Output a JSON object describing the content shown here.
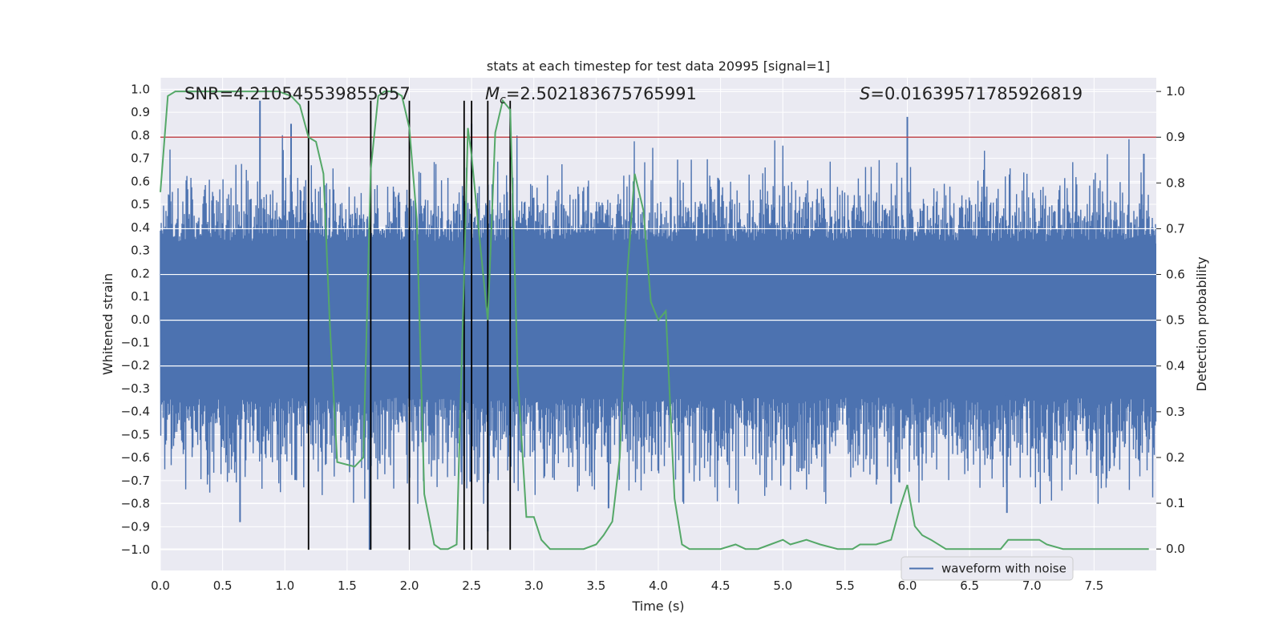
{
  "chart_data": {
    "type": "line",
    "title": "stats at each timestep for test data 20995 [signal=1]",
    "xlabel": "Time (s)",
    "ylabel_left": "Whitened strain",
    "ylabel_right": "Detection probability",
    "xlim": [
      0.0,
      8.0
    ],
    "ylim_left": [
      -1.09,
      1.05
    ],
    "ylim_right": [
      -0.047,
      1.03
    ],
    "x_ticks": [
      "0.0",
      "0.5",
      "1.0",
      "1.5",
      "2.0",
      "2.5",
      "3.0",
      "3.5",
      "4.0",
      "4.5",
      "5.0",
      "5.5",
      "6.0",
      "6.5",
      "7.0",
      "7.5"
    ],
    "y_ticks_left": [
      "1.0",
      "0.9",
      "0.8",
      "0.7",
      "0.6",
      "0.5",
      "0.4",
      "0.3",
      "0.2",
      "0.1",
      "0.0",
      "−0.1",
      "−0.2",
      "−0.3",
      "−0.4",
      "−0.5",
      "−0.6",
      "−0.7",
      "−0.8",
      "−0.9",
      "−1.0"
    ],
    "y_ticks_right": [
      "1.0",
      "0.9",
      "0.8",
      "0.7",
      "0.6",
      "0.5",
      "0.4",
      "0.3",
      "0.2",
      "0.1",
      "0.0"
    ],
    "annotations": {
      "snr": "SNR=4.210545539855957",
      "mc_symbol": "M",
      "mc_sub": "c",
      "mc_value": "=2.502183675765991",
      "s_symbol": "S",
      "s_value": "=0.01639571785926819"
    },
    "legend": {
      "position": "lower-right",
      "entries": [
        "waveform with noise"
      ]
    },
    "colors": {
      "background": "#eaeaf2",
      "grid": "#ffffff",
      "waveform": "#4c72b0",
      "probability": "#55a868",
      "threshold": "#c44e52",
      "markers": "#000000"
    },
    "threshold": 0.9,
    "detection_markers_x": [
      1.19,
      1.69,
      2.0,
      2.44,
      2.5,
      2.63,
      2.81
    ],
    "marker_ymin": -1.0,
    "marker_ymax": 0.95,
    "waveform_envelope": {
      "note": "white-noise strain, typical amplitude ~0.4 with spikes",
      "peaks_positive": [
        [
          0.8,
          0.95
        ],
        [
          1.05,
          0.85
        ],
        [
          2.5,
          0.85
        ],
        [
          3.8,
          0.6
        ],
        [
          6.0,
          0.88
        ],
        [
          7.9,
          0.72
        ]
      ],
      "peaks_negative": [
        [
          0.64,
          -0.88
        ],
        [
          1.68,
          -1.0
        ],
        [
          2.63,
          -0.92
        ],
        [
          3.6,
          -0.82
        ],
        [
          5.87,
          -0.8
        ],
        [
          6.8,
          -0.84
        ]
      ]
    },
    "series": [
      {
        "name": "detection probability",
        "axis": "right",
        "x": [
          0.0,
          0.06,
          0.12,
          0.25,
          0.5,
          0.8,
          0.95,
          1.05,
          1.12,
          1.19,
          1.25,
          1.31,
          1.36,
          1.42,
          1.56,
          1.63,
          1.69,
          1.75,
          1.8,
          1.88,
          1.94,
          2.0,
          2.06,
          2.12,
          2.2,
          2.25,
          2.31,
          2.38,
          2.44,
          2.47,
          2.5,
          2.56,
          2.63,
          2.69,
          2.75,
          2.81,
          2.87,
          2.94,
          3.0,
          3.06,
          3.13,
          3.25,
          3.4,
          3.5,
          3.56,
          3.63,
          3.69,
          3.75,
          3.81,
          3.88,
          3.94,
          4.0,
          4.06,
          4.13,
          4.19,
          4.25,
          4.5,
          4.62,
          4.7,
          4.8,
          4.9,
          5.0,
          5.06,
          5.19,
          5.3,
          5.44,
          5.5,
          5.56,
          5.62,
          5.75,
          5.87,
          5.94,
          6.0,
          6.06,
          6.12,
          6.19,
          6.31,
          6.5,
          6.75,
          6.81,
          6.88,
          6.94,
          7.06,
          7.12,
          7.25,
          7.5,
          7.75,
          7.87,
          7.94
        ],
        "values": [
          0.78,
          0.99,
          1.0,
          1.0,
          1.0,
          1.0,
          1.0,
          0.99,
          0.97,
          0.9,
          0.89,
          0.82,
          0.5,
          0.19,
          0.18,
          0.2,
          0.83,
          0.99,
          1.0,
          1.0,
          0.99,
          0.92,
          0.72,
          0.12,
          0.01,
          0.0,
          0.0,
          0.01,
          0.6,
          0.92,
          0.86,
          0.69,
          0.5,
          0.91,
          0.98,
          0.96,
          0.38,
          0.07,
          0.07,
          0.02,
          0.0,
          0.0,
          0.0,
          0.01,
          0.03,
          0.06,
          0.2,
          0.6,
          0.82,
          0.74,
          0.54,
          0.5,
          0.52,
          0.11,
          0.01,
          0.0,
          0.0,
          0.01,
          0.0,
          0.0,
          0.01,
          0.02,
          0.01,
          0.02,
          0.01,
          0.0,
          0.0,
          0.0,
          0.01,
          0.01,
          0.02,
          0.09,
          0.14,
          0.05,
          0.03,
          0.02,
          0.0,
          0.0,
          0.0,
          0.02,
          0.02,
          0.02,
          0.02,
          0.01,
          0.0,
          0.0,
          0.0,
          0.0,
          0.0
        ]
      },
      {
        "name": "waveform with noise",
        "axis": "left",
        "values": []
      }
    ]
  }
}
